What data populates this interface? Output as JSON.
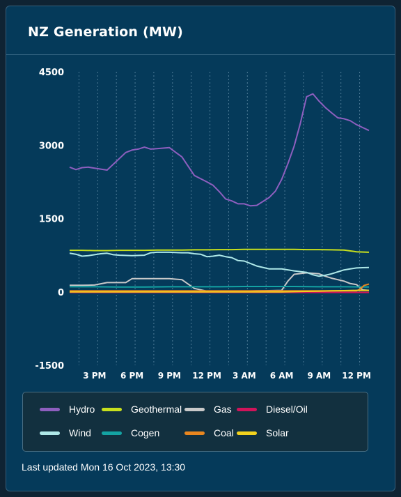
{
  "title": "NZ Generation (MW)",
  "footer": {
    "updated": "Last updated Mon 16 Oct 2023, 13:30"
  },
  "chart_data": {
    "type": "line",
    "ylim": [
      -1500,
      4500
    ],
    "yticks": [
      "4500",
      "3000",
      "1500",
      "0",
      "-1500"
    ],
    "ytick_values": [
      4500,
      3000,
      1500,
      0,
      -1500
    ],
    "x_range": [
      13,
      37
    ],
    "xticks": [
      "3 PM",
      "6 PM",
      "9 PM",
      "12 PM",
      "3 AM",
      "6 AM",
      "9 AM",
      "12 PM"
    ],
    "xtick_values": [
      15,
      18,
      21,
      24,
      27,
      30,
      33,
      36
    ],
    "grid": {
      "vertical": true,
      "horizontal": false
    },
    "legend_position": "bottom",
    "series": [
      {
        "name": "Hydro",
        "color": "#8e5fbf",
        "x": [
          13,
          13.5,
          14,
          14.5,
          15,
          16,
          17,
          17.5,
          18,
          18.5,
          19,
          19.5,
          20,
          21,
          22,
          23,
          24,
          24.5,
          25,
          25.5,
          26,
          26.5,
          27,
          27.5,
          28,
          29,
          29.5,
          30,
          30.5,
          31,
          31.5,
          32,
          32.5,
          33,
          33.5,
          34,
          34.5,
          35,
          35.5,
          36,
          36.5,
          37
        ],
        "values": [
          2550,
          2500,
          2540,
          2550,
          2530,
          2490,
          2730,
          2850,
          2900,
          2920,
          2960,
          2920,
          2930,
          2950,
          2760,
          2380,
          2250,
          2180,
          2050,
          1900,
          1860,
          1800,
          1800,
          1760,
          1770,
          1930,
          2060,
          2300,
          2620,
          2980,
          3450,
          3990,
          4050,
          3900,
          3770,
          3660,
          3560,
          3540,
          3500,
          3420,
          3360,
          3300
        ]
      },
      {
        "name": "Geothermal",
        "color": "#c8e01d",
        "x": [
          13,
          14,
          15,
          16,
          17,
          18,
          19,
          20,
          21,
          22,
          23,
          24,
          25,
          26,
          27,
          28,
          29,
          30,
          31,
          32,
          33,
          34,
          35,
          36,
          37
        ],
        "values": [
          850,
          850,
          845,
          845,
          850,
          850,
          850,
          855,
          855,
          855,
          860,
          860,
          865,
          865,
          870,
          870,
          870,
          870,
          870,
          865,
          865,
          860,
          855,
          820,
          810
        ]
      },
      {
        "name": "Gas",
        "color": "#c9c9c9",
        "x": [
          13,
          14,
          15,
          16,
          17,
          17.5,
          18,
          19,
          20,
          21,
          22,
          23,
          24,
          24.5,
          25,
          26,
          27,
          28,
          29,
          30,
          30.5,
          31,
          32,
          33,
          33.5,
          34,
          35,
          35.5,
          36,
          36.5,
          37
        ],
        "values": [
          135,
          135,
          140,
          190,
          190,
          190,
          270,
          270,
          270,
          270,
          250,
          70,
          15,
          5,
          15,
          15,
          15,
          20,
          25,
          30,
          220,
          360,
          390,
          370,
          320,
          280,
          220,
          170,
          150,
          40,
          30
        ]
      },
      {
        "name": "Diesel/Oil",
        "color": "#d0145a",
        "x": [
          13,
          37
        ],
        "values": [
          -10,
          -10
        ]
      },
      {
        "name": "Wind",
        "color": "#aee8e8",
        "x": [
          13,
          13.5,
          14,
          14.5,
          15,
          15.5,
          16,
          16.5,
          17,
          18,
          19,
          19.5,
          20,
          21,
          22,
          22.5,
          23,
          23.5,
          24,
          24.5,
          25,
          25.5,
          26,
          26.5,
          27,
          28,
          29,
          30,
          31,
          32,
          32.5,
          33,
          33.5,
          34,
          34.5,
          35,
          35.5,
          36,
          36.5,
          37
        ],
        "values": [
          790,
          770,
          730,
          740,
          760,
          780,
          790,
          760,
          750,
          740,
          750,
          800,
          810,
          810,
          800,
          800,
          780,
          770,
          720,
          730,
          750,
          720,
          700,
          640,
          630,
          530,
          470,
          470,
          430,
          400,
          350,
          320,
          340,
          370,
          410,
          450,
          470,
          490,
          495,
          500
        ]
      },
      {
        "name": "Cogen",
        "color": "#14a3a3",
        "x": [
          13,
          15,
          17,
          19,
          21,
          23,
          25,
          27,
          29,
          31,
          33,
          35,
          37
        ],
        "values": [
          105,
          105,
          100,
          100,
          105,
          105,
          105,
          110,
          110,
          110,
          105,
          105,
          100
        ]
      },
      {
        "name": "Coal",
        "color": "#e8861f",
        "x": [
          13,
          14,
          15,
          16,
          17,
          18,
          19,
          20,
          21,
          22,
          23,
          24,
          25,
          26,
          27,
          28,
          29,
          30,
          31,
          32,
          33,
          34,
          35,
          36,
          36.3,
          36.6,
          37
        ],
        "values": [
          20,
          20,
          20,
          20,
          20,
          20,
          20,
          20,
          20,
          20,
          20,
          20,
          20,
          20,
          20,
          20,
          20,
          20,
          20,
          20,
          20,
          20,
          20,
          20,
          60,
          130,
          160
        ]
      },
      {
        "name": "Solar",
        "color": "#f2d21e",
        "x": [
          13,
          14,
          15,
          16,
          17,
          18,
          19,
          20,
          21,
          22,
          23,
          24,
          25,
          26,
          27,
          28,
          29,
          30,
          31,
          32,
          33,
          34,
          35,
          36,
          37
        ],
        "values": [
          0,
          0,
          0,
          0,
          0,
          0,
          0,
          0,
          0,
          0,
          0,
          0,
          0,
          0,
          0,
          0,
          0,
          0,
          5,
          10,
          15,
          20,
          25,
          30,
          30
        ]
      }
    ]
  }
}
